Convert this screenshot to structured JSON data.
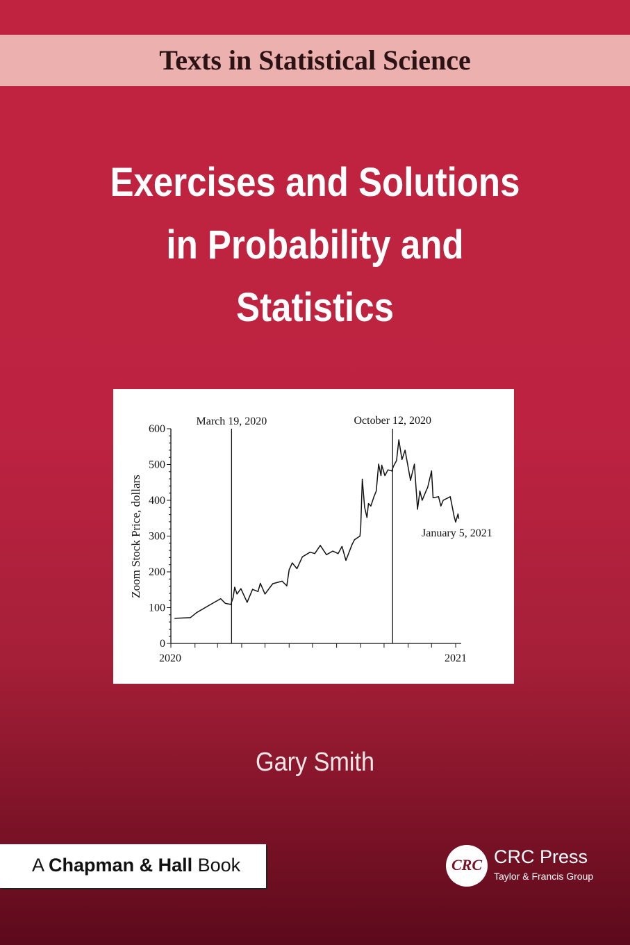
{
  "series": "Texts in Statistical Science",
  "title_lines": [
    "Exercises and Solutions",
    "in Probability and",
    "Statistics"
  ],
  "author": "Gary Smith",
  "imprint": {
    "prefix": "A",
    "name": "Chapman & Hall",
    "suffix": "Book"
  },
  "publisher": {
    "logo_text": "CRC",
    "name": "CRC Press",
    "group": "Taylor & Francis Group"
  },
  "colors": {
    "background_top": "#c0233f",
    "background_bottom": "#5c0a1c",
    "band": "#ecb1ae"
  },
  "chart_data": {
    "type": "line",
    "ylabel": "Zoom Stock Price, dollars",
    "xlabel": "",
    "ylim": [
      0,
      600
    ],
    "yticks": [
      "0",
      "100",
      "200",
      "300",
      "400",
      "500",
      "600"
    ],
    "xtick_labels": [
      "2020",
      "2021"
    ],
    "xlim": [
      "2020-01-01",
      "2021-01-01"
    ],
    "grid": false,
    "annotations": [
      {
        "text": "March 19, 2020",
        "date": "2020-03-19",
        "kind": "vertical-line"
      },
      {
        "text": "October 12, 2020",
        "date": "2020-10-12",
        "kind": "vertical-line"
      },
      {
        "text": "January 5, 2021",
        "date": "2021-01-05",
        "kind": "label"
      }
    ],
    "series": [
      {
        "x": [
          "2020-01-06",
          "2020-01-26",
          "2020-02-03",
          "2020-02-18",
          "2020-03-05",
          "2020-03-11",
          "2020-03-18",
          "2020-03-21",
          "2020-03-23",
          "2020-03-26",
          "2020-03-31",
          "2020-04-08",
          "2020-04-15",
          "2020-04-22",
          "2020-04-25",
          "2020-05-01",
          "2020-05-11",
          "2020-05-23",
          "2020-05-29",
          "2020-06-01",
          "2020-06-05",
          "2020-06-11",
          "2020-06-18",
          "2020-06-28",
          "2020-07-04",
          "2020-07-11",
          "2020-07-19",
          "2020-07-27",
          "2020-08-03",
          "2020-08-08",
          "2020-08-13",
          "2020-08-21",
          "2020-08-24",
          "2020-08-31",
          "2020-09-01",
          "2020-09-03",
          "2020-09-06",
          "2020-09-09",
          "2020-09-11",
          "2020-09-14",
          "2020-09-18",
          "2020-09-21",
          "2020-09-24",
          "2020-09-27",
          "2020-09-28",
          "2020-10-02",
          "2020-10-06",
          "2020-10-11",
          "2020-10-13",
          "2020-10-17",
          "2020-10-20",
          "2020-10-24",
          "2020-10-28",
          "2020-11-04",
          "2020-11-09",
          "2020-11-13",
          "2020-11-16",
          "2020-11-19",
          "2020-11-24",
          "2020-11-26",
          "2020-12-01",
          "2020-12-03",
          "2020-12-10",
          "2020-12-13",
          "2020-12-16",
          "2020-12-25",
          "2020-12-28",
          "2020-12-30",
          "2021-01-01",
          "2021-01-04",
          "2021-01-05"
        ],
        "y": [
          70,
          72,
          86,
          105,
          125,
          112,
          109,
          128,
          157,
          138,
          153,
          115,
          151,
          145,
          168,
          138,
          167,
          174,
          161,
          206,
          225,
          209,
          242,
          255,
          251,
          274,
          248,
          258,
          251,
          271,
          232,
          277,
          290,
          300,
          323,
          459,
          381,
          352,
          391,
          384,
          410,
          426,
          501,
          469,
          498,
          469,
          485,
          482,
          495,
          511,
          569,
          514,
          540,
          456,
          501,
          375,
          426,
          400,
          426,
          436,
          482,
          407,
          410,
          384,
          400,
          410,
          378,
          355,
          339,
          362,
          349
        ]
      }
    ]
  }
}
